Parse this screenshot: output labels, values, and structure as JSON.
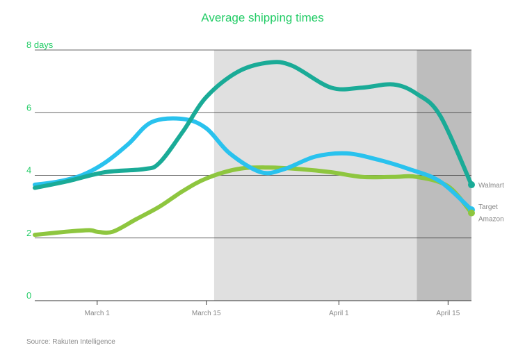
{
  "colors": {
    "title": "#22cc66",
    "ytick": "#22cc66",
    "band_light": "#e0e0e0",
    "band_dark": "#bdbdbd",
    "grid": "#333333",
    "axis": "#333333",
    "label": "#888888"
  },
  "chart_data": {
    "type": "line",
    "title": "Average shipping times",
    "source": "Source: Rakuten Intelligence",
    "xlabel": "",
    "ylabel": "",
    "ylim": [
      0,
      8
    ],
    "yticks": [
      {
        "value": 0,
        "label": "0"
      },
      {
        "value": 2,
        "label": "2"
      },
      {
        "value": 4,
        "label": "4"
      },
      {
        "value": 6,
        "label": "6"
      },
      {
        "value": 8,
        "label": "8 days"
      }
    ],
    "xlim": [
      "2020-02-22",
      "2020-04-18"
    ],
    "xticks": [
      {
        "date": "2020-03-01",
        "label": "March 1"
      },
      {
        "date": "2020-03-15",
        "label": "March 15"
      },
      {
        "date": "2020-04-01",
        "label": "April 1"
      },
      {
        "date": "2020-04-15",
        "label": "April 15"
      }
    ],
    "shaded_periods": [
      {
        "start": "2020-03-16",
        "end": "2020-04-11",
        "shade": "light"
      },
      {
        "start": "2020-04-11",
        "end": "2020-04-20",
        "shade": "dark"
      }
    ],
    "grid": true,
    "legend": "end-of-line labels",
    "series": [
      {
        "name": "Walmart",
        "color": "#1aab97",
        "points": [
          [
            "2020-02-22",
            3.6
          ],
          [
            "2020-02-26",
            3.8
          ],
          [
            "2020-03-02",
            4.1
          ],
          [
            "2020-03-07",
            4.2
          ],
          [
            "2020-03-09",
            4.4
          ],
          [
            "2020-03-12",
            5.4
          ],
          [
            "2020-03-15",
            6.5
          ],
          [
            "2020-03-19",
            7.3
          ],
          [
            "2020-03-23",
            7.6
          ],
          [
            "2020-03-26",
            7.5
          ],
          [
            "2020-03-31",
            6.8
          ],
          [
            "2020-04-04",
            6.8
          ],
          [
            "2020-04-08",
            6.9
          ],
          [
            "2020-04-11",
            6.6
          ],
          [
            "2020-04-14",
            5.9
          ],
          [
            "2020-04-18",
            3.7
          ]
        ]
      },
      {
        "name": "Target",
        "color": "#29c2ee",
        "points": [
          [
            "2020-02-22",
            3.7
          ],
          [
            "2020-02-25",
            3.8
          ],
          [
            "2020-02-28",
            4.0
          ],
          [
            "2020-03-02",
            4.4
          ],
          [
            "2020-03-05",
            5.0
          ],
          [
            "2020-03-08",
            5.7
          ],
          [
            "2020-03-12",
            5.8
          ],
          [
            "2020-03-15",
            5.5
          ],
          [
            "2020-03-18",
            4.7
          ],
          [
            "2020-03-22",
            4.1
          ],
          [
            "2020-03-25",
            4.2
          ],
          [
            "2020-03-29",
            4.6
          ],
          [
            "2020-04-02",
            4.7
          ],
          [
            "2020-04-06",
            4.5
          ],
          [
            "2020-04-10",
            4.2
          ],
          [
            "2020-04-14",
            3.8
          ],
          [
            "2020-04-18",
            2.9
          ]
        ]
      },
      {
        "name": "Amazon",
        "color": "#8ec63f",
        "points": [
          [
            "2020-02-22",
            2.1
          ],
          [
            "2020-02-26",
            2.2
          ],
          [
            "2020-02-29",
            2.25
          ],
          [
            "2020-03-01",
            2.2
          ],
          [
            "2020-03-03",
            2.2
          ],
          [
            "2020-03-06",
            2.6
          ],
          [
            "2020-03-09",
            3.0
          ],
          [
            "2020-03-12",
            3.5
          ],
          [
            "2020-03-15",
            3.9
          ],
          [
            "2020-03-19",
            4.2
          ],
          [
            "2020-03-23",
            4.25
          ],
          [
            "2020-03-27",
            4.2
          ],
          [
            "2020-03-31",
            4.1
          ],
          [
            "2020-04-04",
            3.95
          ],
          [
            "2020-04-08",
            3.95
          ],
          [
            "2020-04-11",
            3.95
          ],
          [
            "2020-04-15",
            3.65
          ],
          [
            "2020-04-18",
            2.8
          ]
        ]
      }
    ]
  }
}
